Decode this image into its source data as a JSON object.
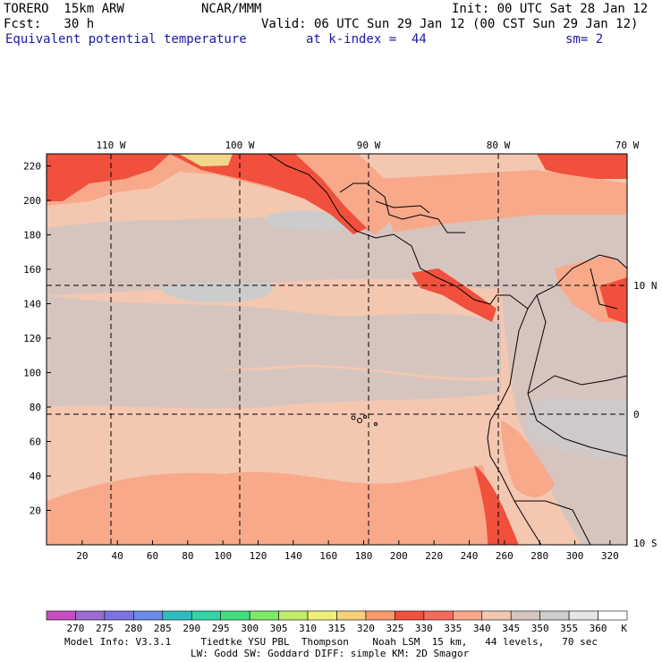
{
  "header": {
    "model": "TORERO  15km ARW",
    "org": "NCAR/MMM",
    "init": "Init: 00 UTC Sat 28 Jan 12",
    "fcst": "Fcst:   30 h",
    "valid": "Valid: 06 UTC Sun 29 Jan 12 (00 CST Sun 29 Jan 12)",
    "field": "Equivalent potential temperature",
    "level": "at k-index =  44",
    "smooth": "sm= 2"
  },
  "map": {
    "lon_labels": [
      "110 W",
      "100 W",
      "90 W",
      "80 W",
      "70 W"
    ],
    "lat_labels": [
      "10 N",
      "0",
      "10 S"
    ],
    "x_ticks": [
      "20",
      "40",
      "60",
      "80",
      "100",
      "120",
      "140",
      "160",
      "180",
      "200",
      "220",
      "240",
      "260",
      "280",
      "300",
      "320"
    ],
    "y_ticks": [
      "220",
      "200",
      "180",
      "160",
      "140",
      "120",
      "100",
      "80",
      "60",
      "40",
      "20"
    ],
    "colors": {
      "ocean_band": "#f4c7b1",
      "grey_band": "#d6c5bf",
      "salmon": "#f7a98a",
      "red": "#f0503c",
      "yellow": "#f2d68a",
      "land_line": "#000000",
      "grid_line": "#000000"
    }
  },
  "colorbar": {
    "labels": [
      "270",
      "275",
      "280",
      "285",
      "290",
      "295",
      "300",
      "305",
      "310",
      "315",
      "320",
      "325",
      "330",
      "335",
      "340",
      "345",
      "350",
      "355",
      "360"
    ],
    "unit": "K",
    "colors": [
      "#c44ec0",
      "#9b6bd0",
      "#7b74e0",
      "#6a8ae6",
      "#2fbcc0",
      "#2ed6a8",
      "#3fe07c",
      "#7ee86a",
      "#c0ec6a",
      "#eef07a",
      "#f6d07a",
      "#f79a6c",
      "#f0503c",
      "#f36b5a",
      "#f7a98a",
      "#f4c7b1",
      "#d6c5bf",
      "#cccccc",
      "#e6e6e6",
      "#ffffff"
    ]
  },
  "footer": {
    "line1": "Model Info: V3.3.1     Tiedtke YSU PBL  Thompson    Noah LSM  15 km,   44 levels,   70 sec",
    "line2": "LW: Godd SW: Goddard DIFF: simple KM: 2D Smagor"
  }
}
